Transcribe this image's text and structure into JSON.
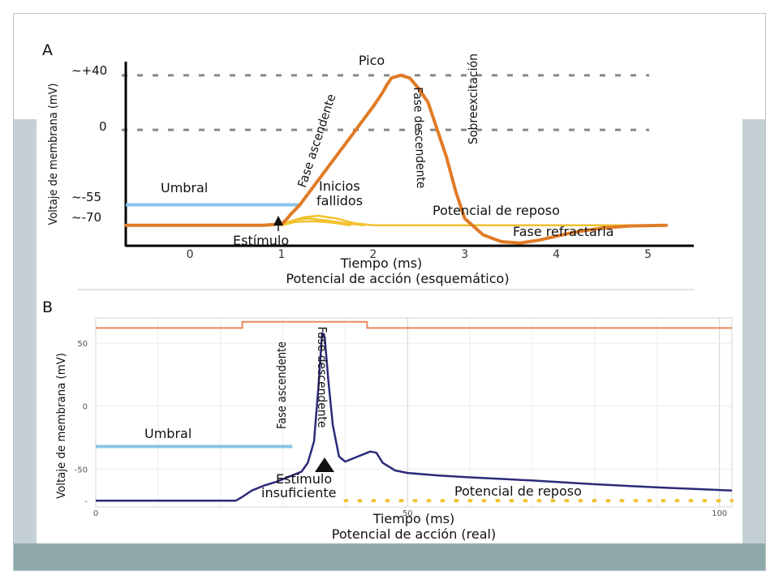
{
  "chart_data": [
    {
      "type": "line",
      "panel_label": "A",
      "title": "Potencial de acción (esquemático)",
      "xlabel": "Tiempo (ms)",
      "ylabel": "Voltaje de membrana (mV)",
      "x_ticks": [
        "0",
        "1",
        "2",
        "3",
        "4",
        "5"
      ],
      "y_ticks": [
        "~+40",
        "0",
        "~-55",
        "~-70"
      ],
      "xlim": [
        -0.7,
        5.5
      ],
      "ylim": [
        -85,
        50
      ],
      "reference_lines": [
        {
          "y": 40,
          "style": "dashed"
        },
        {
          "y": 0,
          "style": "dashed"
        }
      ],
      "series": [
        {
          "color": "#e07b26",
          "x": [
            -0.7,
            0.2,
            0.5,
            0.8,
            1.0,
            1.05,
            1.1,
            1.2,
            1.3,
            1.4,
            1.5,
            1.6,
            1.7,
            1.8,
            1.9,
            2.0,
            2.05,
            2.1,
            2.15,
            2.2,
            2.3,
            2.4,
            2.5,
            2.6,
            2.7,
            2.8,
            2.9,
            3.0,
            3.2,
            3.4,
            3.6,
            3.8,
            4.0,
            4.2,
            4.5,
            4.8,
            5.2
          ],
          "y": [
            -70,
            -70,
            -70,
            -70,
            -69,
            -66,
            -62,
            -55,
            -46,
            -37,
            -28,
            -19,
            -10,
            -1,
            8,
            17,
            22,
            27,
            33,
            38,
            40,
            38,
            30,
            20,
            0,
            -20,
            -45,
            -65,
            -77,
            -82,
            -83,
            -81,
            -78,
            -75,
            -72,
            -70.5,
            -70
          ]
        },
        {
          "color": "#f2c12e",
          "x": [
            1.0,
            1.1,
            1.25,
            1.4,
            1.6,
            1.8,
            2.0,
            4.0,
            5.2
          ],
          "y": [
            -70,
            -67,
            -64,
            -63,
            -65,
            -68.5,
            -70,
            -70,
            -70
          ]
        },
        {
          "color": "#f2c12e",
          "x": [
            1.0,
            1.15,
            1.3,
            1.5,
            1.7,
            1.9
          ],
          "y": [
            -70,
            -66,
            -65,
            -66.5,
            -68.5,
            -70
          ]
        },
        {
          "color": "#f2c12e",
          "x": [
            1.0,
            1.15,
            1.35,
            1.55,
            1.75
          ],
          "y": [
            -70,
            -67.5,
            -67,
            -68,
            -70
          ]
        }
      ],
      "threshold": {
        "label": "Umbral",
        "y": -55,
        "color": "#88c4ea"
      },
      "annotations": {
        "peak": "Pico",
        "rising": "Fase ascendente",
        "falling": "Fase descendente",
        "overshoot": "Sobreexcitación",
        "failed_1": "Inicios",
        "failed_2": "fallidos",
        "resting": "Potencial de reposo",
        "refractory": "Fase refractaria",
        "stimulus": "Estímulo"
      }
    },
    {
      "type": "line",
      "panel_label": "B",
      "title": "Potencial de acción (real)",
      "xlabel": "Tiempo (ms)",
      "ylabel": "Voltaje de membrana (mV)",
      "x_ticks": [
        "0",
        "50",
        "100"
      ],
      "y_ticks": [
        "50",
        "0",
        "-50",
        "-"
      ],
      "xlim": [
        0,
        102
      ],
      "ylim": [
        -80,
        70
      ],
      "grid": true,
      "stimulus_trace": {
        "color": "#e88a5a",
        "x": [
          0,
          23.5,
          23.5,
          43.5,
          43.5,
          102
        ],
        "y": [
          62,
          62,
          67,
          67,
          62,
          62
        ]
      },
      "series": [
        {
          "color": "#2c2a7a",
          "x": [
            0,
            22.5,
            23.5,
            25,
            27,
            29,
            31,
            33,
            34,
            35,
            35.7,
            36.3,
            36.7,
            37.3,
            38,
            39,
            40,
            41,
            42,
            43,
            44,
            45,
            46,
            48,
            50,
            55,
            60,
            70,
            80,
            90,
            102
          ],
          "y": [
            -75,
            -75,
            -72,
            -67,
            -63,
            -60,
            -56,
            -52,
            -45,
            -28,
            15,
            58,
            55,
            20,
            -15,
            -40,
            -44,
            -42,
            -40,
            -38,
            -36,
            -37,
            -45,
            -51,
            -53,
            -55,
            -56.5,
            -59,
            -62,
            -64.5,
            -67
          ]
        }
      ],
      "resting": {
        "y": -75,
        "color": "#f2c12e"
      },
      "threshold": {
        "label": "Umbral",
        "y": -32,
        "color": "#88c4ea"
      },
      "annotations": {
        "rising": "Fase ascendente",
        "falling": "Fase descendente",
        "stim_1": "Estímulo",
        "stim_2": "insuficiente",
        "resting": "Potencial de reposo"
      }
    }
  ]
}
